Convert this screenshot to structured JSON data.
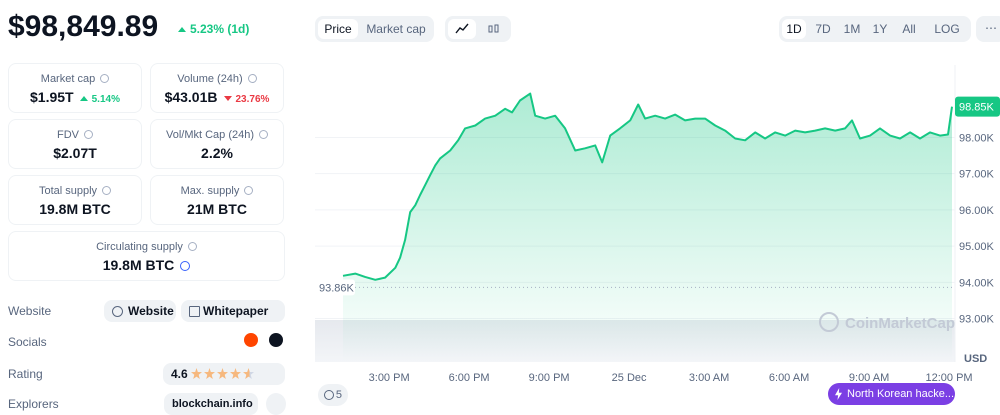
{
  "header": {
    "price": "$98,849.89",
    "change": "5.23% (1d)",
    "change_color": "#16c784",
    "change_direction": "up"
  },
  "stats": [
    {
      "label": "Market cap",
      "value": "$1.95T",
      "change": "5.14%",
      "change_color": "#16c784",
      "change_direction": "up"
    },
    {
      "label": "Volume (24h)",
      "value": "$43.01B",
      "change": "23.76%",
      "change_color": "#ea3943",
      "change_direction": "down"
    },
    {
      "label": "FDV",
      "value": "$2.07T"
    },
    {
      "label": "Vol/Mkt Cap (24h)",
      "value": "2.2%"
    },
    {
      "label": "Total supply",
      "value": "19.8M BTC"
    },
    {
      "label": "Max. supply",
      "value": "21M BTC"
    },
    {
      "label": "Circulating supply",
      "value": "19.8M BTC"
    }
  ],
  "links": [
    {
      "label": "Website",
      "items": [
        "Website",
        "Whitepaper"
      ]
    },
    {
      "label": "Socials"
    },
    {
      "label": "Rating",
      "value": 4.6
    },
    {
      "label": "Explorers",
      "value": "blockchain.info"
    }
  ],
  "toolbar": {
    "tabs": [
      "Price",
      "Market cap"
    ],
    "ranges": [
      "1D",
      "7D",
      "1M",
      "1Y",
      "All",
      "LOG"
    ]
  },
  "chart_data": {
    "type": "area",
    "color": "#16c784",
    "x": [
      13.27,
      13.73,
      14.1,
      14.48,
      14.85,
      15.23,
      15.41,
      15.6,
      15.79,
      15.98,
      16.16,
      16.35,
      16.54,
      16.73,
      16.91,
      17.29,
      17.59,
      17.85,
      18.23,
      18.6,
      18.98,
      19.35,
      19.61,
      19.91,
      20.29,
      20.48,
      20.85,
      21.23,
      21.6,
      21.98,
      22.35,
      22.73,
      22.99,
      23.29,
      23.66,
      24.04,
      24.34,
      24.6,
      24.98,
      25.35,
      25.73,
      26.1,
      26.48,
      26.85,
      27.23,
      27.6,
      27.98,
      28.35,
      28.73,
      29.1,
      29.48,
      29.85,
      30.23,
      30.6,
      30.98,
      31.35,
      31.73,
      32.1,
      32.36,
      32.66,
      33.04,
      33.41,
      33.79,
      34.16,
      34.54,
      34.91,
      35.29,
      35.66,
      35.96,
      36.11
    ],
    "values": [
      94180,
      94240,
      94150,
      94070,
      94130,
      94400,
      94680,
      95170,
      95940,
      96130,
      96410,
      96680,
      96960,
      97230,
      97420,
      97640,
      97920,
      98250,
      98330,
      98520,
      98600,
      98790,
      98690,
      99020,
      99210,
      98600,
      98520,
      98600,
      98250,
      97640,
      97700,
      97780,
      97310,
      98050,
      98250,
      98470,
      98910,
      98520,
      98600,
      98520,
      98630,
      98470,
      98520,
      98520,
      98330,
      98190,
      97970,
      97920,
      98140,
      97970,
      98140,
      98050,
      98190,
      98140,
      98190,
      98250,
      98190,
      98250,
      98470,
      97970,
      98050,
      98250,
      98050,
      97970,
      98140,
      97970,
      98140,
      98050,
      98080,
      98850
    ],
    "xlim": [
      13.27,
      36.11
    ],
    "xticks": [
      {
        "value": 15,
        "label": "3:00 PM"
      },
      {
        "value": 18,
        "label": "6:00 PM"
      },
      {
        "value": 21,
        "label": "9:00 PM"
      },
      {
        "value": 24,
        "label": "25 Dec"
      },
      {
        "value": 27,
        "label": "3:00 AM"
      },
      {
        "value": 30,
        "label": "6:00 AM"
      },
      {
        "value": 33,
        "label": "9:00 AM"
      },
      {
        "value": 36,
        "label": "12:00 PM"
      }
    ],
    "ylim": [
      91800,
      100000
    ],
    "yticks": [
      {
        "value": 93000,
        "label": "93.00K"
      },
      {
        "value": 94000,
        "label": "94.00K"
      },
      {
        "value": 95000,
        "label": "95.00K"
      },
      {
        "value": 96000,
        "label": "96.00K"
      },
      {
        "value": 97000,
        "label": "97.00K"
      },
      {
        "value": 98000,
        "label": "98.00K"
      }
    ],
    "grid": true,
    "current_price": {
      "value": 98850,
      "label": "98.85K"
    },
    "baseline": {
      "value": 93860,
      "label": "93.86K"
    },
    "y_unit": "USD",
    "watermark": "CoinMarketCap"
  },
  "news": {
    "count": 5,
    "headline": "North Korean hacke..."
  }
}
